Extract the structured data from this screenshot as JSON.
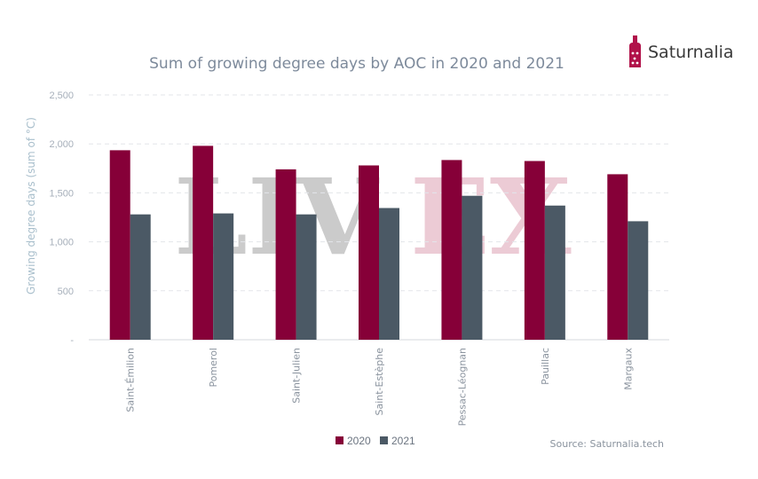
{
  "brand": {
    "name": "Saturnalia",
    "color": "#b1124a"
  },
  "watermark": {
    "left": "LIV",
    "right": "EX",
    "left_color": "#c9c9c9",
    "right_color": "#ecc9d3"
  },
  "source": "Source: Saturnalia.tech",
  "chart_data": {
    "type": "bar",
    "title": "Sum of growing degree days by AOC in 2020 and 2021",
    "xlabel": "",
    "ylabel": "Growing degree days (sum of °C)",
    "ylim": [
      0,
      2500
    ],
    "yticks": [
      0,
      500,
      1000,
      1500,
      2000,
      2500
    ],
    "ytick_labels": [
      "-",
      "500",
      "1,000",
      "1,500",
      "2,000",
      "2,500"
    ],
    "categories": [
      "Saint-Émilion",
      "Pomerol",
      "Saint-Julien",
      "Saint-Estèphe",
      "Pessac-Léognan",
      "Pauillac",
      "Margaux"
    ],
    "series": [
      {
        "name": "2020",
        "color": "#860038",
        "values": [
          1935,
          1980,
          1740,
          1780,
          1835,
          1825,
          1690
        ]
      },
      {
        "name": "2021",
        "color": "#4b5965",
        "values": [
          1280,
          1290,
          1280,
          1345,
          1470,
          1370,
          1210
        ]
      }
    ],
    "grid": true,
    "legend": "bottom-center"
  }
}
